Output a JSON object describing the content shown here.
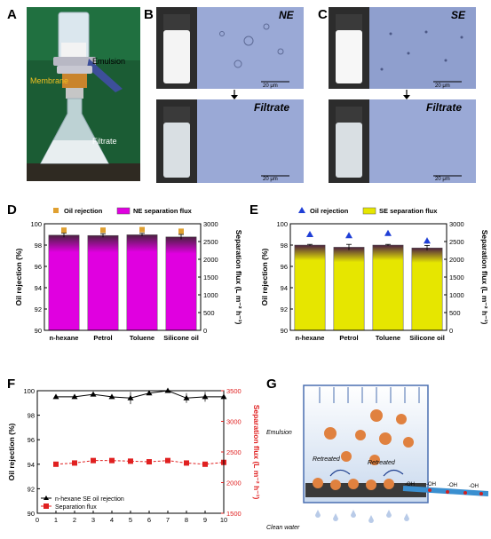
{
  "figure": {
    "panel_letters": [
      "A",
      "B",
      "C",
      "D",
      "E",
      "F",
      "G"
    ],
    "panel_a": {
      "emulsion_label": "Emulsion",
      "membrane_label": "Membrane",
      "filtrate_label": "Filtrate"
    },
    "panel_b": {
      "top_label": "NE",
      "bottom_label": "Filtrate",
      "scale_bar": "20 μm"
    },
    "panel_c": {
      "top_label": "SE",
      "bottom_label": "Filtrate",
      "scale_bar": "20 μm"
    },
    "panel_g": {
      "emulsion_label": "Emulsion",
      "retreated_left": "Retreated",
      "retreated_right": "Retreated",
      "clean_water_label": "Clean water",
      "oh_label": "-OH"
    },
    "colors": {
      "magenta_bar": "#e000e0",
      "yellow_bar": "#e6e600",
      "orange_marker": "#e0a030",
      "blue_marker": "#1f3fd6",
      "red_series": "#e02020",
      "micrograph_bg": "#9aa9d6"
    }
  },
  "chart_data": [
    {
      "panel": "D",
      "type": "bar",
      "categories": [
        "n-hexane",
        "Petrol",
        "Toluene",
        "Silicone oil"
      ],
      "legend": [
        "Oil rejection",
        "NE separation flux"
      ],
      "ylabel": "Oil rejection (%)",
      "y2label": "Separation flux (L m⁻² h⁻¹)",
      "ylim": [
        90,
        100
      ],
      "y2lim": [
        0,
        3000
      ],
      "yticks": [
        90,
        92,
        94,
        96,
        98,
        100
      ],
      "y2ticks": [
        0,
        500,
        1000,
        1500,
        2000,
        2500,
        3000
      ],
      "series": [
        {
          "name": "NE separation flux",
          "axis": "right",
          "values": [
            2680,
            2670,
            2690,
            2630
          ],
          "errors": [
            60,
            50,
            40,
            70
          ]
        },
        {
          "name": "Oil rejection",
          "axis": "left",
          "values": [
            99.4,
            99.4,
            99.45,
            99.3
          ],
          "errors": [
            0.15,
            0.15,
            0.12,
            0.15
          ]
        }
      ]
    },
    {
      "panel": "E",
      "type": "bar",
      "categories": [
        "n-hexane",
        "Petrol",
        "Toluene",
        "Silicone oil"
      ],
      "legend": [
        "Oil rejection",
        "SE separation flux"
      ],
      "ylabel": "Oil rejection (%)",
      "y2label": "Separation flux (L m⁻² h⁻¹)",
      "ylim": [
        90,
        100
      ],
      "y2lim": [
        0,
        3000
      ],
      "yticks": [
        90,
        92,
        94,
        96,
        98,
        100
      ],
      "y2ticks": [
        0,
        500,
        1000,
        1500,
        2000,
        2500,
        3000
      ],
      "series": [
        {
          "name": "SE separation flux",
          "axis": "right",
          "values": [
            2400,
            2340,
            2400,
            2320
          ],
          "errors": [
            20,
            80,
            20,
            70
          ]
        },
        {
          "name": "Oil rejection",
          "axis": "left",
          "values": [
            99.0,
            98.9,
            99.1,
            98.4
          ],
          "errors": [
            0.1,
            0.1,
            0.1,
            0.3
          ]
        }
      ]
    },
    {
      "panel": "F",
      "type": "line",
      "x": [
        1,
        2,
        3,
        4,
        5,
        6,
        7,
        8,
        9,
        10
      ],
      "xticks": [
        0,
        1,
        2,
        3,
        4,
        5,
        6,
        7,
        8,
        9,
        10
      ],
      "legend": [
        "n-hexane SE oil rejection",
        "Separation flux"
      ],
      "ylabel": "Oil rejection (%)",
      "y2label": "Separation flux (L m⁻² h⁻¹)",
      "ylim": [
        90,
        100
      ],
      "y2lim": [
        1500,
        3500
      ],
      "yticks": [
        90,
        92,
        94,
        96,
        98,
        100
      ],
      "y2ticks": [
        1500,
        2000,
        2500,
        3000,
        3500
      ],
      "series": [
        {
          "name": "n-hexane SE oil rejection",
          "axis": "left",
          "values": [
            99.5,
            99.5,
            99.7,
            99.5,
            99.4,
            99.8,
            100.0,
            99.4,
            99.5,
            99.5
          ],
          "errors": [
            0.1,
            0.1,
            0.1,
            0.1,
            0.5,
            0.1,
            0.1,
            0.4,
            0.4,
            0.4
          ]
        },
        {
          "name": "Separation flux",
          "axis": "right",
          "values": [
            2300,
            2320,
            2360,
            2360,
            2350,
            2340,
            2360,
            2320,
            2300,
            2330
          ]
        }
      ]
    }
  ]
}
